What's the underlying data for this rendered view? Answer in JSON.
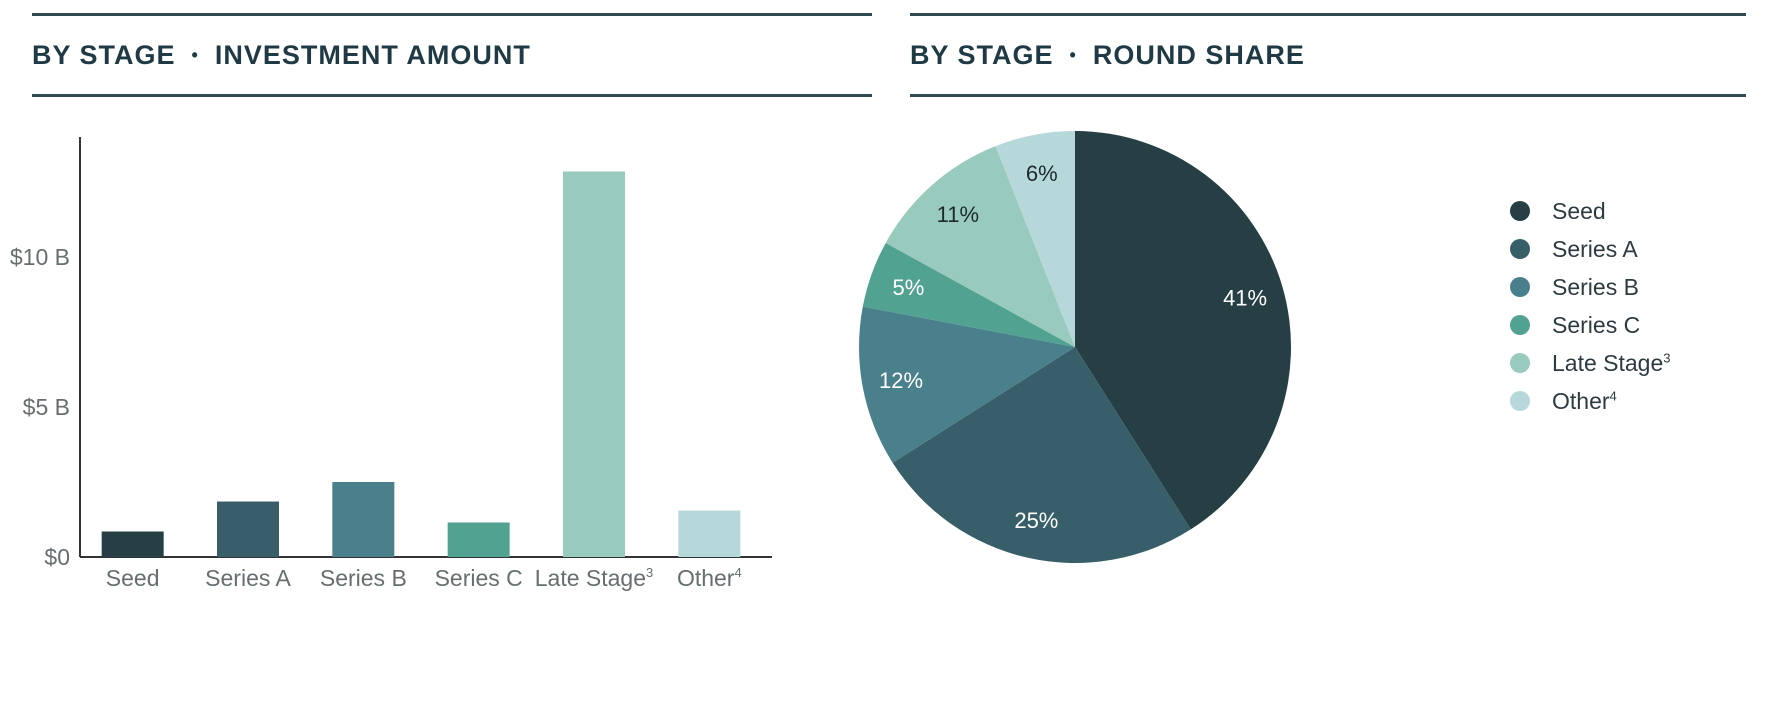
{
  "left_panel": {
    "title_part1": "BY STAGE",
    "separator": "•",
    "title_part2": "INVESTMENT AMOUNT"
  },
  "right_panel": {
    "title_part1": "BY STAGE",
    "separator": "•",
    "title_part2": "ROUND SHARE"
  },
  "colors": {
    "seed": "#263f44",
    "series_a": "#385f69",
    "series_b": "#4a808b",
    "series_c": "#52a291",
    "late_stage": "#98cabd",
    "other": "#b6d8da",
    "rule": "#2f4a50",
    "title": "#1f3a44"
  },
  "chart_data": [
    {
      "type": "bar",
      "title": "BY STAGE • INVESTMENT AMOUNT",
      "categories": [
        {
          "label": "Seed",
          "sup": ""
        },
        {
          "label": "Series A",
          "sup": ""
        },
        {
          "label": "Series B",
          "sup": ""
        },
        {
          "label": "Series C",
          "sup": ""
        },
        {
          "label": "Late Stage",
          "sup": "3"
        },
        {
          "label": "Other",
          "sup": "4"
        }
      ],
      "values": [
        0.85,
        1.85,
        2.5,
        1.15,
        12.85,
        1.55
      ],
      "unit": "B",
      "yticks": [
        {
          "value": 0,
          "label": "$0"
        },
        {
          "value": 5,
          "label": "$5 B"
        },
        {
          "value": 10,
          "label": "$10 B"
        }
      ],
      "ylim": [
        0,
        14
      ],
      "grid": false
    },
    {
      "type": "pie",
      "title": "BY STAGE • ROUND SHARE",
      "slices": [
        {
          "label": "Seed",
          "sup": "",
          "value": 41,
          "display": "41%"
        },
        {
          "label": "Series A",
          "sup": "",
          "value": 25,
          "display": "25%"
        },
        {
          "label": "Series B",
          "sup": "",
          "value": 12,
          "display": "12%"
        },
        {
          "label": "Series C",
          "sup": "",
          "value": 5,
          "display": "5%"
        },
        {
          "label": "Late Stage",
          "sup": "3",
          "value": 11,
          "display": "11%"
        },
        {
          "label": "Other",
          "sup": "4",
          "value": 6,
          "display": "6%"
        }
      ],
      "legend_position": "right"
    }
  ]
}
